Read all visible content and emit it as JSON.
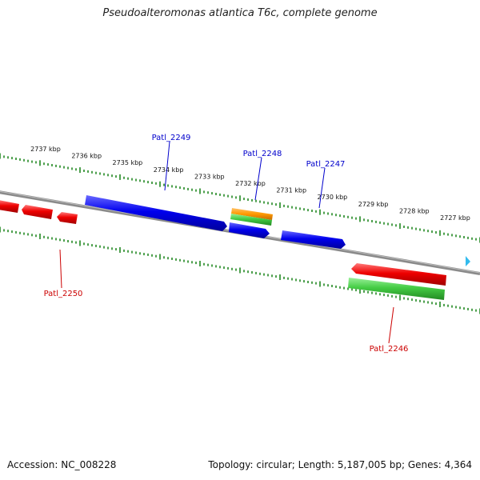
{
  "title": "Pseudoalteromonas atlantica T6c, complete genome",
  "footer": {
    "accession": "Accession: NC_008228",
    "summary": "Topology: circular; Length: 5,187,005 bp; Genes: 4,364"
  },
  "colors": {
    "forward_cds": "#0000ee",
    "reverse_cds": "#ee0000",
    "rna": "#44cc44",
    "other_feature": "#ff9900",
    "backbone": "#8a8a8a",
    "ticks": "#228822",
    "marker": "#33bbee"
  },
  "scale_ticks": [
    "2737 kbp",
    "2736 kbp",
    "2735 kbp",
    "2734 kbp",
    "2733 kbp",
    "2732 kbp",
    "2731 kbp",
    "2730 kbp",
    "2729 kbp",
    "2728 kbp",
    "2727 kbp"
  ],
  "gene_labels": {
    "patl_2249": "Patl_2249",
    "patl_2248": "Patl_2248",
    "patl_2247": "Patl_2247",
    "patl_2250": "Patl_2250",
    "patl_2246": "Patl_2246"
  }
}
